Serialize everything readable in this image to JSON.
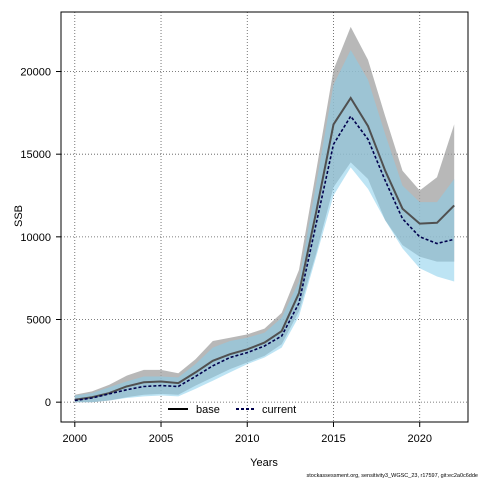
{
  "chart_data": {
    "type": "line",
    "title": "",
    "xlabel": "Years",
    "ylabel": "SSB",
    "xlim": [
      1999.2,
      2022.8
    ],
    "ylim": [
      -1200,
      23600
    ],
    "x_ticks": [
      2000,
      2005,
      2010,
      2015,
      2020
    ],
    "y_ticks": [
      0,
      5000,
      10000,
      15000,
      20000
    ],
    "x_tick_labels": [
      "2000",
      "2005",
      "2010",
      "2015",
      "2020"
    ],
    "y_tick_labels": [
      "0",
      "5000",
      "10000",
      "15000",
      "20000"
    ],
    "grid": true,
    "legend_position": "bottom",
    "x": [
      2000,
      2001,
      2002,
      2003,
      2004,
      2005,
      2006,
      2007,
      2008,
      2009,
      2010,
      2011,
      2012,
      2013,
      2014,
      2015,
      2016,
      2017,
      2018,
      2019,
      2020,
      2021,
      2022
    ],
    "series": [
      {
        "name": "base",
        "line_color": "#505050",
        "band_color": "#a0a0a0",
        "values": [
          150,
          300,
          550,
          950,
          1200,
          1250,
          1150,
          1800,
          2500,
          2900,
          3200,
          3600,
          4300,
          6600,
          11500,
          16800,
          18400,
          16700,
          14000,
          11700,
          10800,
          10850,
          11900
        ],
        "lower": [
          0,
          0,
          100,
          300,
          450,
          500,
          450,
          1000,
          1500,
          2000,
          2400,
          2800,
          3500,
          5500,
          9000,
          13000,
          14500,
          13500,
          11000,
          9500,
          8800,
          8500,
          8500
        ],
        "upper": [
          450,
          650,
          1050,
          1600,
          1950,
          1950,
          1750,
          2600,
          3700,
          3900,
          4100,
          4450,
          5400,
          8000,
          14000,
          20100,
          22700,
          20700,
          17300,
          14000,
          12800,
          13600,
          16800
        ]
      },
      {
        "name": "current",
        "line_color": "#00004d",
        "band_color": "#87ceeb",
        "values": [
          100,
          250,
          500,
          750,
          950,
          1000,
          950,
          1550,
          2200,
          2700,
          3000,
          3400,
          4000,
          6000,
          10800,
          15600,
          17300,
          15900,
          13400,
          11100,
          10000,
          9600,
          9850
        ],
        "lower": [
          0,
          0,
          100,
          250,
          350,
          400,
          350,
          800,
          1300,
          1800,
          2300,
          2700,
          3300,
          5200,
          8800,
          12500,
          14200,
          12900,
          11000,
          9300,
          8100,
          7600,
          7300
        ],
        "upper": [
          400,
          550,
          900,
          1250,
          1550,
          1550,
          1500,
          2300,
          3300,
          3700,
          3900,
          4200,
          5100,
          7300,
          13200,
          19200,
          21300,
          19500,
          16200,
          13100,
          12100,
          12100,
          13500
        ]
      }
    ]
  },
  "footnote": "stockassessment.org, sensitivity3_WGSC_23, r17597, git:ec2a0c6dde"
}
